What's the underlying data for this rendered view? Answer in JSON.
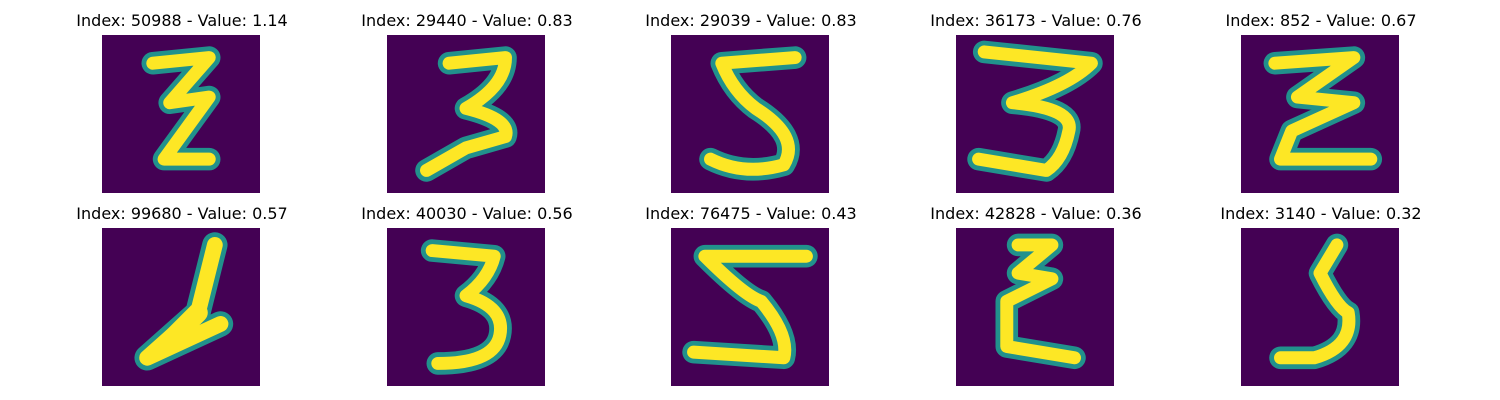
{
  "colors": {
    "background": "#440154",
    "mid": "#21918c",
    "foreground": "#fde725"
  },
  "panels": [
    {
      "title": "Index: 50988 - Value: 1.14",
      "digit_icon": "handwritten-digit-z-zigzag-icon"
    },
    {
      "title": "Index: 29440 - Value: 0.83",
      "digit_icon": "handwritten-digit-3-icon"
    },
    {
      "title": "Index: 29039 - Value: 0.83",
      "digit_icon": "handwritten-digit-5-icon"
    },
    {
      "title": "Index: 36173 - Value: 0.76",
      "digit_icon": "handwritten-digit-3-wide-icon"
    },
    {
      "title": "Index: 852 - Value: 0.67",
      "digit_icon": "handwritten-digit-z-zigzag-icon"
    },
    {
      "title": "Index: 99680 - Value: 0.57",
      "digit_icon": "handwritten-digit-slanted-icon"
    },
    {
      "title": "Index: 40030 - Value: 0.56",
      "digit_icon": "handwritten-digit-3-icon"
    },
    {
      "title": "Index: 76475 - Value: 0.43",
      "digit_icon": "handwritten-digit-5-icon"
    },
    {
      "title": "Index: 42828 - Value: 0.36",
      "digit_icon": "handwritten-digit-z-zigzag-icon"
    },
    {
      "title": "Index: 3140 - Value: 0.32",
      "digit_icon": "handwritten-digit-5-icon"
    }
  ]
}
